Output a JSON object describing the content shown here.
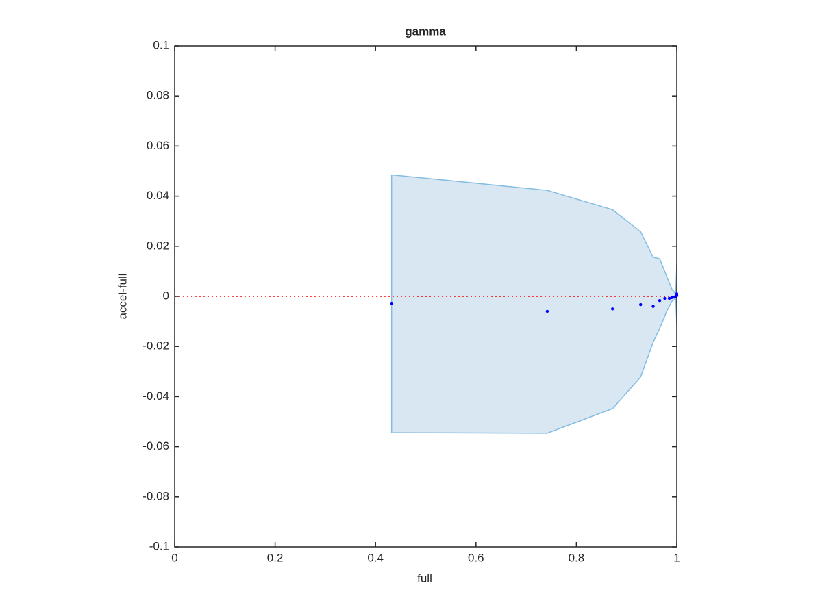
{
  "chart_data": {
    "type": "scatter",
    "title": "gamma",
    "xlabel": "full",
    "ylabel": "accel-full",
    "x": [
      0.432,
      0.742,
      0.872,
      0.928,
      0.953,
      0.966,
      0.976,
      0.985,
      0.99,
      0.995,
      0.998,
      1,
      1
    ],
    "y": [
      -0.0028,
      -0.006,
      -0.005,
      -0.0033,
      -0.004,
      -0.0017,
      -0.0008,
      -0.0008,
      -0.0005,
      -0.0003,
      0,
      0.001,
      0.0003
    ],
    "color": "#0000ff",
    "band": {
      "x": [
        0.432,
        0.742,
        0.872,
        0.928,
        0.953,
        0.966,
        0.98,
        0.99,
        0.998,
        1
      ],
      "upper": [
        0.0485,
        0.0423,
        0.0346,
        0.0258,
        0.0156,
        0.015,
        0.008,
        0.003,
        0.001,
        0.013
      ],
      "lower": [
        -0.0544,
        -0.0546,
        -0.0448,
        -0.0322,
        -0.0183,
        -0.0128,
        -0.006,
        -0.002,
        -0.001,
        -0.011
      ],
      "fill": "#d9e7f3",
      "edge": "#82bce2"
    },
    "hline": 0,
    "hline_color": "#ff0000",
    "xlim": [
      0,
      1
    ],
    "xticks": [
      0,
      0.2,
      0.4,
      0.6,
      0.8,
      1
    ],
    "ylim": [
      -0.1,
      0.1
    ],
    "yticks": [
      -0.1,
      -0.08,
      -0.06,
      -0.04,
      -0.02,
      0,
      0.02,
      0.04,
      0.06,
      0.08,
      0.1
    ]
  }
}
